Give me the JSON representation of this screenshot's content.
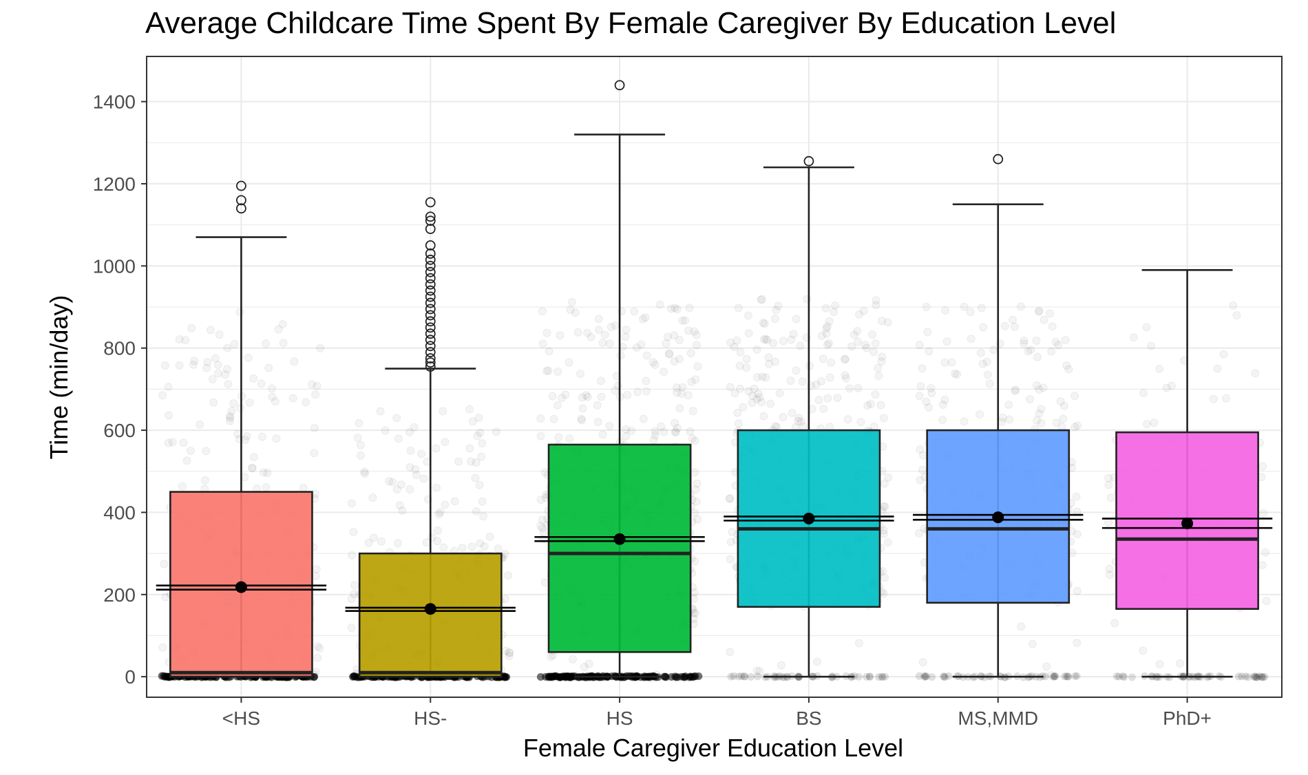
{
  "chart_data": {
    "type": "boxplot",
    "title": "Average Childcare Time Spent By Female Caregiver By Education Level",
    "xlabel": "Female Caregiver Education Level",
    "ylabel": "Time (min/day)",
    "ylim": [
      -50,
      1510
    ],
    "yticks": [
      0,
      200,
      400,
      600,
      800,
      1000,
      1200,
      1400
    ],
    "grid": true,
    "panel_border_color": "#333333",
    "grid_color": "#ebebeb",
    "categories": [
      "<HS",
      "HS-",
      "HS",
      "BS",
      "MS,MMD",
      "PhD+"
    ],
    "series": [
      {
        "name": "<HS",
        "color": "#F8766D",
        "q1": 0,
        "median": 10,
        "q3": 450,
        "whisker_low": 0,
        "whisker_high": 1070,
        "mean": 218,
        "ci_low": 212,
        "ci_high": 222,
        "outliers": [
          1140,
          1160,
          1195
        ],
        "jitter_density": 0.55,
        "zero_cluster": true
      },
      {
        "name": "HS-",
        "color": "#B79F00",
        "q1": 0,
        "median": 10,
        "q3": 300,
        "whisker_low": 0,
        "whisker_high": 750,
        "mean": 165,
        "ci_low": 160,
        "ci_high": 168,
        "outliers": [
          755,
          765,
          775,
          790,
          805,
          820,
          835,
          850,
          865,
          880,
          895,
          910,
          925,
          940,
          955,
          970,
          985,
          1000,
          1015,
          1030,
          1050,
          1090,
          1110,
          1120,
          1155
        ],
        "jitter_density": 0.55,
        "zero_cluster": true
      },
      {
        "name": "HS",
        "color": "#00BA38",
        "q1": 60,
        "median": 300,
        "q3": 565,
        "whisker_low": 0,
        "whisker_high": 1320,
        "mean": 335,
        "ci_low": 330,
        "ci_high": 340,
        "outliers": [
          1440
        ],
        "jitter_density": 1.0,
        "zero_cluster": true
      },
      {
        "name": "BS",
        "color": "#00BFC4",
        "q1": 170,
        "median": 360,
        "q3": 600,
        "whisker_low": 0,
        "whisker_high": 1240,
        "mean": 385,
        "ci_low": 380,
        "ci_high": 390,
        "outliers": [
          1255
        ],
        "jitter_density": 0.9,
        "zero_cluster": false
      },
      {
        "name": "MS,MMD",
        "color": "#619CFF",
        "q1": 180,
        "median": 360,
        "q3": 600,
        "whisker_low": 0,
        "whisker_high": 1150,
        "mean": 388,
        "ci_low": 382,
        "ci_high": 394,
        "outliers": [
          1260
        ],
        "jitter_density": 0.6,
        "zero_cluster": false
      },
      {
        "name": "PhD+",
        "color": "#F564E3",
        "q1": 165,
        "median": 335,
        "q3": 595,
        "whisker_low": 0,
        "whisker_high": 990,
        "mean": 373,
        "ci_low": 362,
        "ci_high": 385,
        "outliers": [],
        "jitter_density": 0.25,
        "zero_cluster": false
      }
    ]
  }
}
